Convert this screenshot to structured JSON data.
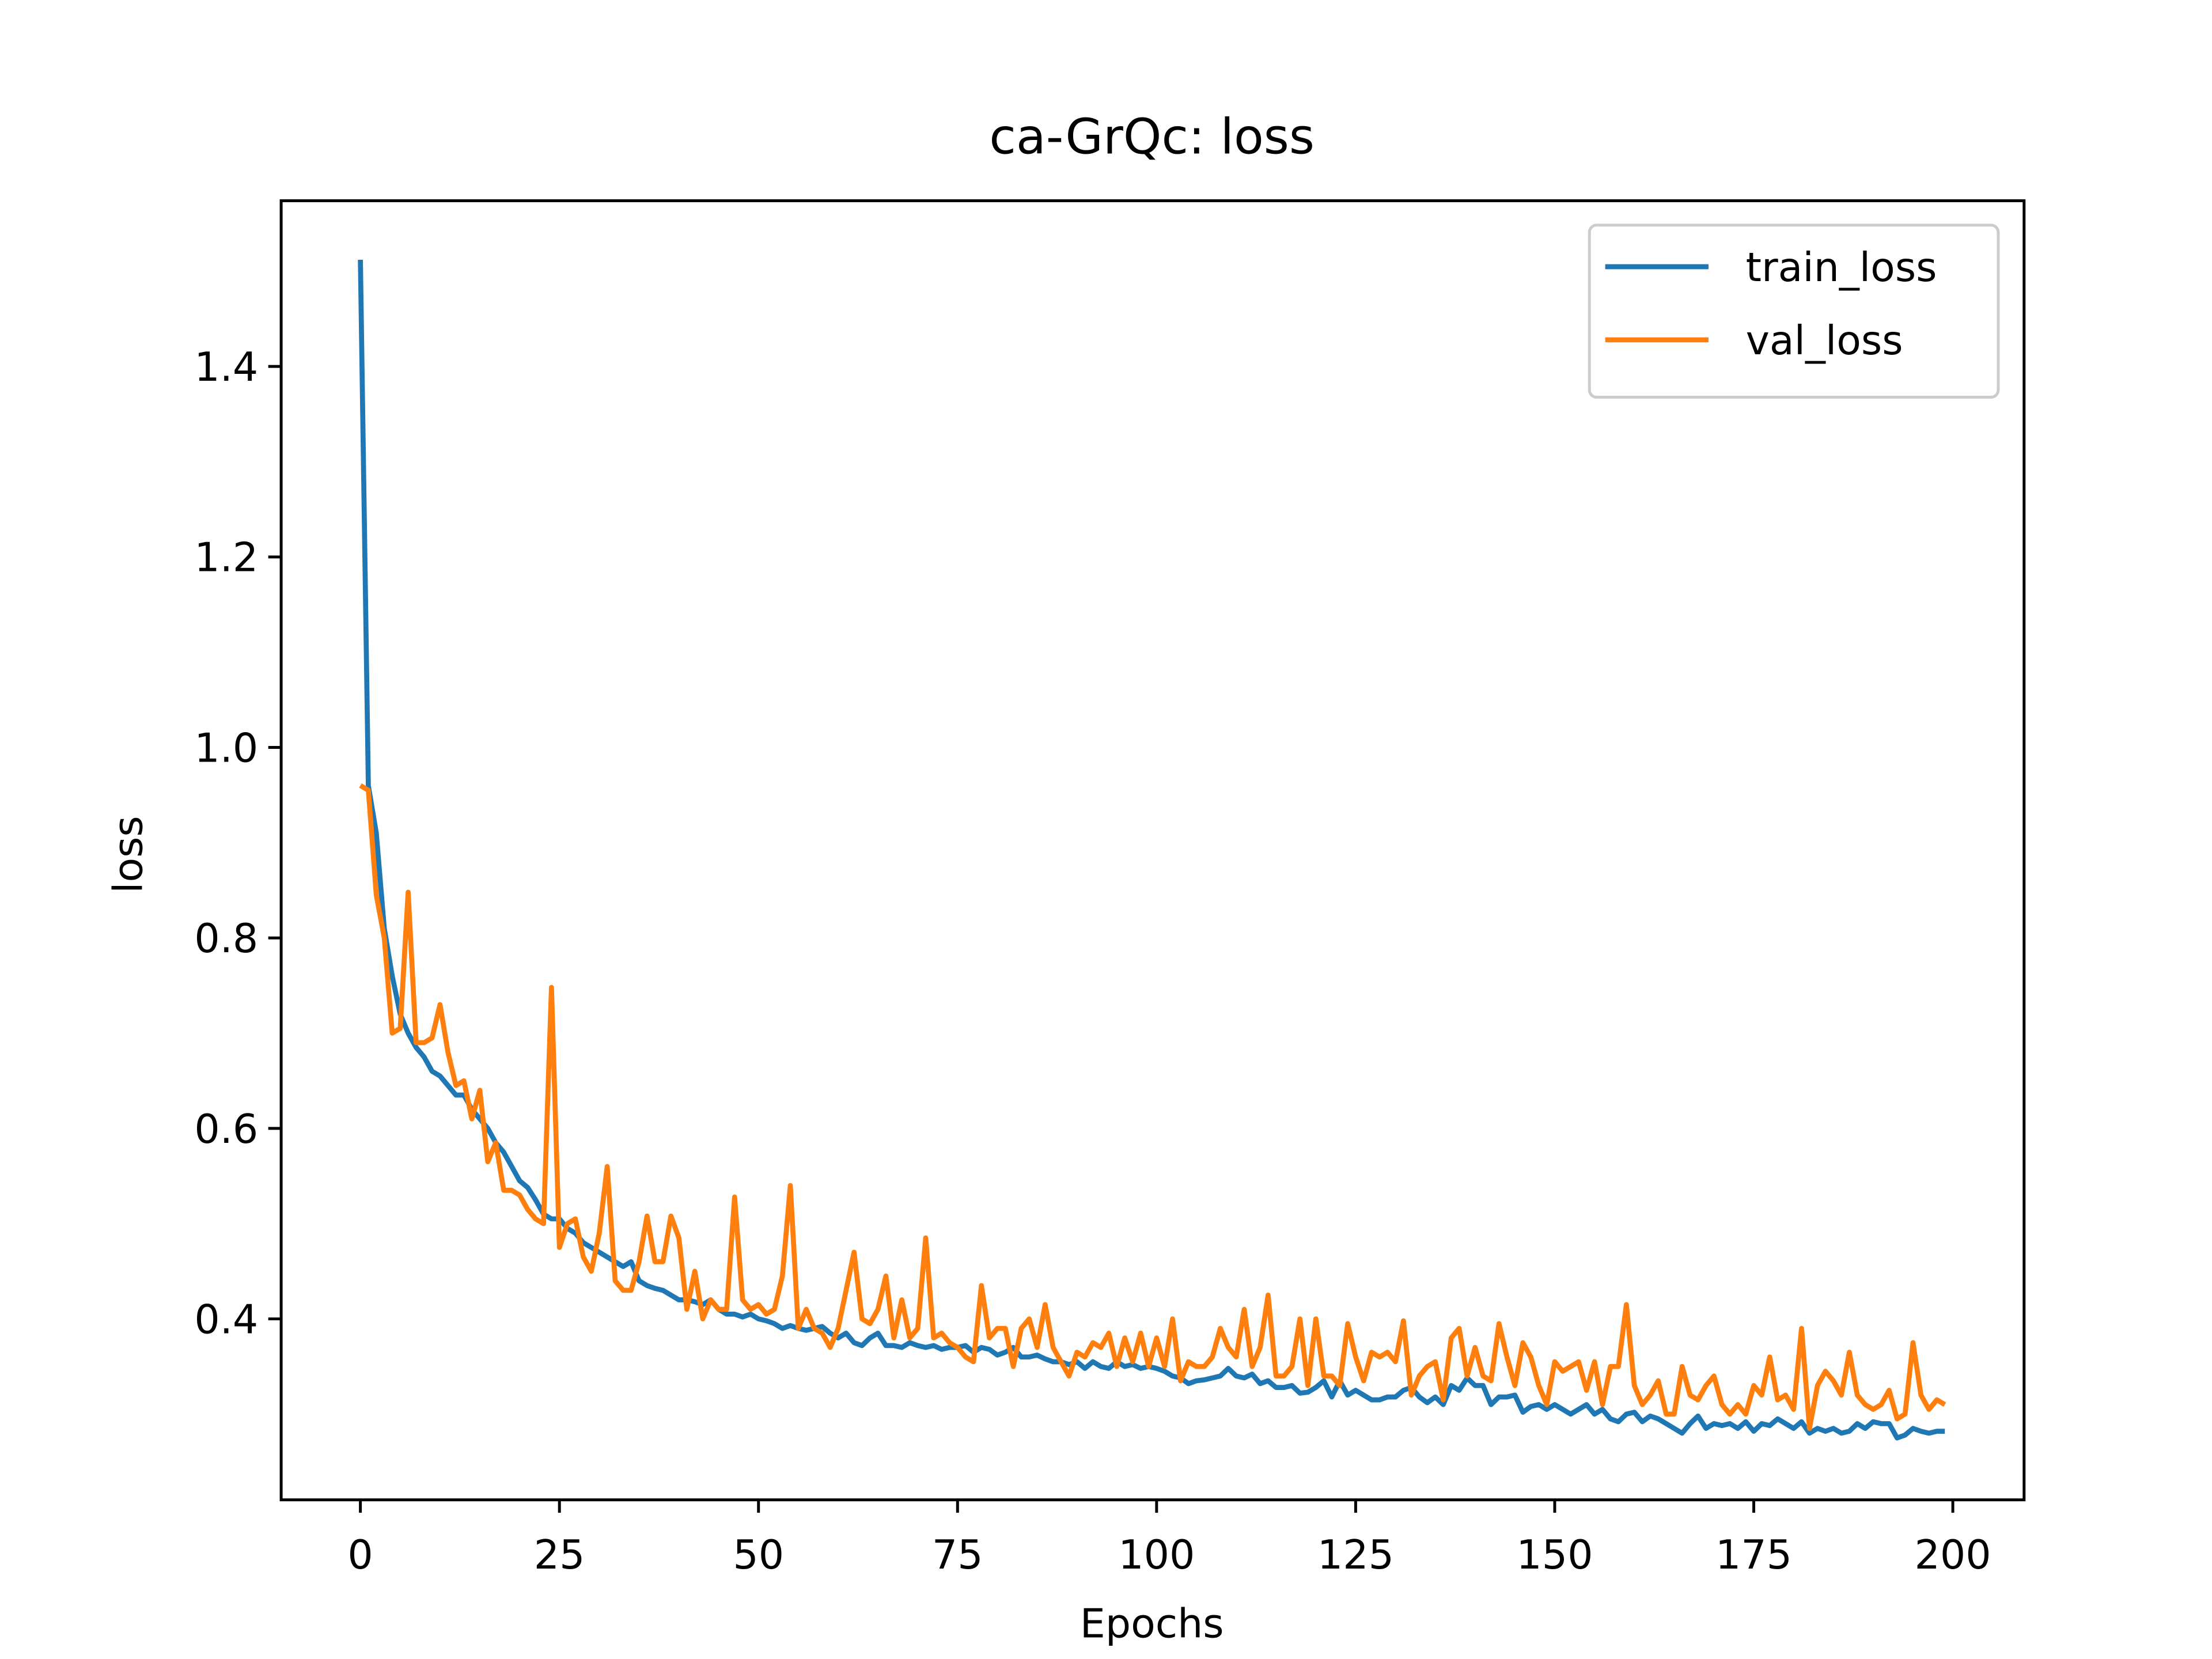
{
  "chart_data": {
    "type": "line",
    "title": "ca-GrQc: loss",
    "x_label": "Epochs",
    "y_label": "loss",
    "x": [
      0,
      1,
      2,
      3,
      4,
      5,
      6,
      7,
      8,
      9,
      10,
      11,
      12,
      13,
      14,
      15,
      16,
      17,
      18,
      19,
      20,
      21,
      22,
      23,
      24,
      25,
      26,
      27,
      28,
      29,
      30,
      31,
      32,
      33,
      34,
      35,
      36,
      37,
      38,
      39,
      40,
      41,
      42,
      43,
      44,
      45,
      46,
      47,
      48,
      49,
      50,
      51,
      52,
      53,
      54,
      55,
      56,
      57,
      58,
      59,
      60,
      61,
      62,
      63,
      64,
      65,
      66,
      67,
      68,
      69,
      70,
      71,
      72,
      73,
      74,
      75,
      76,
      77,
      78,
      79,
      80,
      81,
      82,
      83,
      84,
      85,
      86,
      87,
      88,
      89,
      90,
      91,
      92,
      93,
      94,
      95,
      96,
      97,
      98,
      99,
      100,
      101,
      102,
      103,
      104,
      105,
      106,
      107,
      108,
      109,
      110,
      111,
      112,
      113,
      114,
      115,
      116,
      117,
      118,
      119,
      120,
      121,
      122,
      123,
      124,
      125,
      126,
      127,
      128,
      129,
      130,
      131,
      132,
      133,
      134,
      135,
      136,
      137,
      138,
      139,
      140,
      141,
      142,
      143,
      144,
      145,
      146,
      147,
      148,
      149,
      150,
      151,
      152,
      153,
      154,
      155,
      156,
      157,
      158,
      159,
      160,
      161,
      162,
      163,
      164,
      165,
      166,
      167,
      168,
      169,
      170,
      171,
      172,
      173,
      174,
      175,
      176,
      177,
      178,
      179,
      180,
      181,
      182,
      183,
      184,
      185,
      186,
      187,
      188,
      189,
      190,
      191,
      192,
      193,
      194,
      195,
      196,
      197,
      198,
      199
    ],
    "series": [
      {
        "name": "train_loss",
        "color": "#1f77b4",
        "values": [
          1.512,
          0.96,
          0.91,
          0.81,
          0.76,
          0.72,
          0.7,
          0.685,
          0.675,
          0.66,
          0.655,
          0.645,
          0.635,
          0.635,
          0.62,
          0.61,
          0.6,
          0.585,
          0.575,
          0.56,
          0.545,
          0.538,
          0.525,
          0.51,
          0.505,
          0.505,
          0.495,
          0.49,
          0.48,
          0.475,
          0.47,
          0.465,
          0.46,
          0.455,
          0.46,
          0.44,
          0.435,
          0.432,
          0.43,
          0.425,
          0.42,
          0.42,
          0.418,
          0.415,
          0.42,
          0.41,
          0.405,
          0.405,
          0.402,
          0.405,
          0.4,
          0.398,
          0.395,
          0.39,
          0.393,
          0.39,
          0.388,
          0.39,
          0.392,
          0.385,
          0.38,
          0.385,
          0.375,
          0.372,
          0.38,
          0.385,
          0.372,
          0.372,
          0.37,
          0.375,
          0.372,
          0.37,
          0.372,
          0.368,
          0.37,
          0.37,
          0.372,
          0.365,
          0.37,
          0.368,
          0.362,
          0.365,
          0.37,
          0.36,
          0.36,
          0.362,
          0.358,
          0.355,
          0.355,
          0.352,
          0.355,
          0.348,
          0.355,
          0.35,
          0.348,
          0.355,
          0.35,
          0.352,
          0.348,
          0.35,
          0.348,
          0.345,
          0.34,
          0.338,
          0.332,
          0.335,
          0.336,
          0.338,
          0.34,
          0.348,
          0.34,
          0.338,
          0.342,
          0.332,
          0.335,
          0.328,
          0.328,
          0.33,
          0.322,
          0.323,
          0.328,
          0.335,
          0.318,
          0.335,
          0.32,
          0.325,
          0.32,
          0.315,
          0.315,
          0.318,
          0.318,
          0.325,
          0.328,
          0.318,
          0.312,
          0.318,
          0.31,
          0.33,
          0.325,
          0.338,
          0.33,
          0.33,
          0.31,
          0.318,
          0.318,
          0.32,
          0.302,
          0.308,
          0.31,
          0.305,
          0.31,
          0.305,
          0.3,
          0.305,
          0.31,
          0.3,
          0.305,
          0.295,
          0.292,
          0.3,
          0.302,
          0.292,
          0.298,
          0.295,
          0.29,
          0.285,
          0.28,
          0.29,
          0.298,
          0.285,
          0.29,
          0.288,
          0.29,
          0.285,
          0.292,
          0.282,
          0.29,
          0.288,
          0.295,
          0.29,
          0.285,
          0.292,
          0.28,
          0.285,
          0.282,
          0.285,
          0.28,
          0.282,
          0.29,
          0.285,
          0.292,
          0.29,
          0.29,
          0.275,
          0.278,
          0.285,
          0.282,
          0.28,
          0.282,
          0.282
        ]
      },
      {
        "name": "val_loss",
        "color": "#ff7f0e",
        "values": [
          0.96,
          0.955,
          0.845,
          0.8,
          0.7,
          0.705,
          0.848,
          0.69,
          0.69,
          0.695,
          0.73,
          0.68,
          0.645,
          0.65,
          0.61,
          0.64,
          0.565,
          0.585,
          0.535,
          0.535,
          0.53,
          0.515,
          0.505,
          0.5,
          0.748,
          0.475,
          0.5,
          0.505,
          0.465,
          0.45,
          0.49,
          0.56,
          0.44,
          0.43,
          0.43,
          0.46,
          0.508,
          0.46,
          0.46,
          0.508,
          0.485,
          0.41,
          0.45,
          0.4,
          0.42,
          0.41,
          0.41,
          0.528,
          0.42,
          0.41,
          0.415,
          0.405,
          0.41,
          0.445,
          0.54,
          0.39,
          0.41,
          0.39,
          0.385,
          0.37,
          0.39,
          0.43,
          0.47,
          0.4,
          0.395,
          0.41,
          0.445,
          0.38,
          0.42,
          0.38,
          0.39,
          0.485,
          0.38,
          0.385,
          0.375,
          0.37,
          0.36,
          0.355,
          0.435,
          0.38,
          0.39,
          0.39,
          0.35,
          0.39,
          0.4,
          0.37,
          0.415,
          0.37,
          0.355,
          0.34,
          0.365,
          0.36,
          0.375,
          0.37,
          0.385,
          0.35,
          0.38,
          0.355,
          0.385,
          0.35,
          0.38,
          0.35,
          0.4,
          0.335,
          0.355,
          0.35,
          0.35,
          0.36,
          0.39,
          0.37,
          0.36,
          0.41,
          0.35,
          0.37,
          0.425,
          0.34,
          0.34,
          0.35,
          0.4,
          0.33,
          0.4,
          0.34,
          0.34,
          0.33,
          0.395,
          0.36,
          0.335,
          0.365,
          0.36,
          0.365,
          0.355,
          0.398,
          0.32,
          0.34,
          0.35,
          0.355,
          0.315,
          0.38,
          0.39,
          0.34,
          0.37,
          0.34,
          0.335,
          0.395,
          0.36,
          0.33,
          0.375,
          0.36,
          0.33,
          0.31,
          0.355,
          0.345,
          0.35,
          0.355,
          0.325,
          0.355,
          0.31,
          0.35,
          0.35,
          0.415,
          0.33,
          0.31,
          0.32,
          0.335,
          0.3,
          0.3,
          0.35,
          0.32,
          0.315,
          0.33,
          0.34,
          0.31,
          0.3,
          0.31,
          0.3,
          0.33,
          0.32,
          0.36,
          0.315,
          0.32,
          0.305,
          0.39,
          0.285,
          0.33,
          0.345,
          0.335,
          0.32,
          0.365,
          0.32,
          0.31,
          0.305,
          0.31,
          0.325,
          0.295,
          0.3,
          0.375,
          0.32,
          0.305,
          0.315,
          0.31
        ]
      }
    ],
    "xlim": [
      -9.95,
      208.95
    ],
    "ylim": [
      0.21,
      1.574
    ],
    "xticks": [
      0,
      25,
      50,
      75,
      100,
      125,
      150,
      175,
      200
    ],
    "yticks": [
      0.4,
      0.6,
      0.8,
      {
        "value": 1,
        "label": "1.0"
      },
      1.2,
      1.4
    ],
    "legend": "upper right"
  }
}
